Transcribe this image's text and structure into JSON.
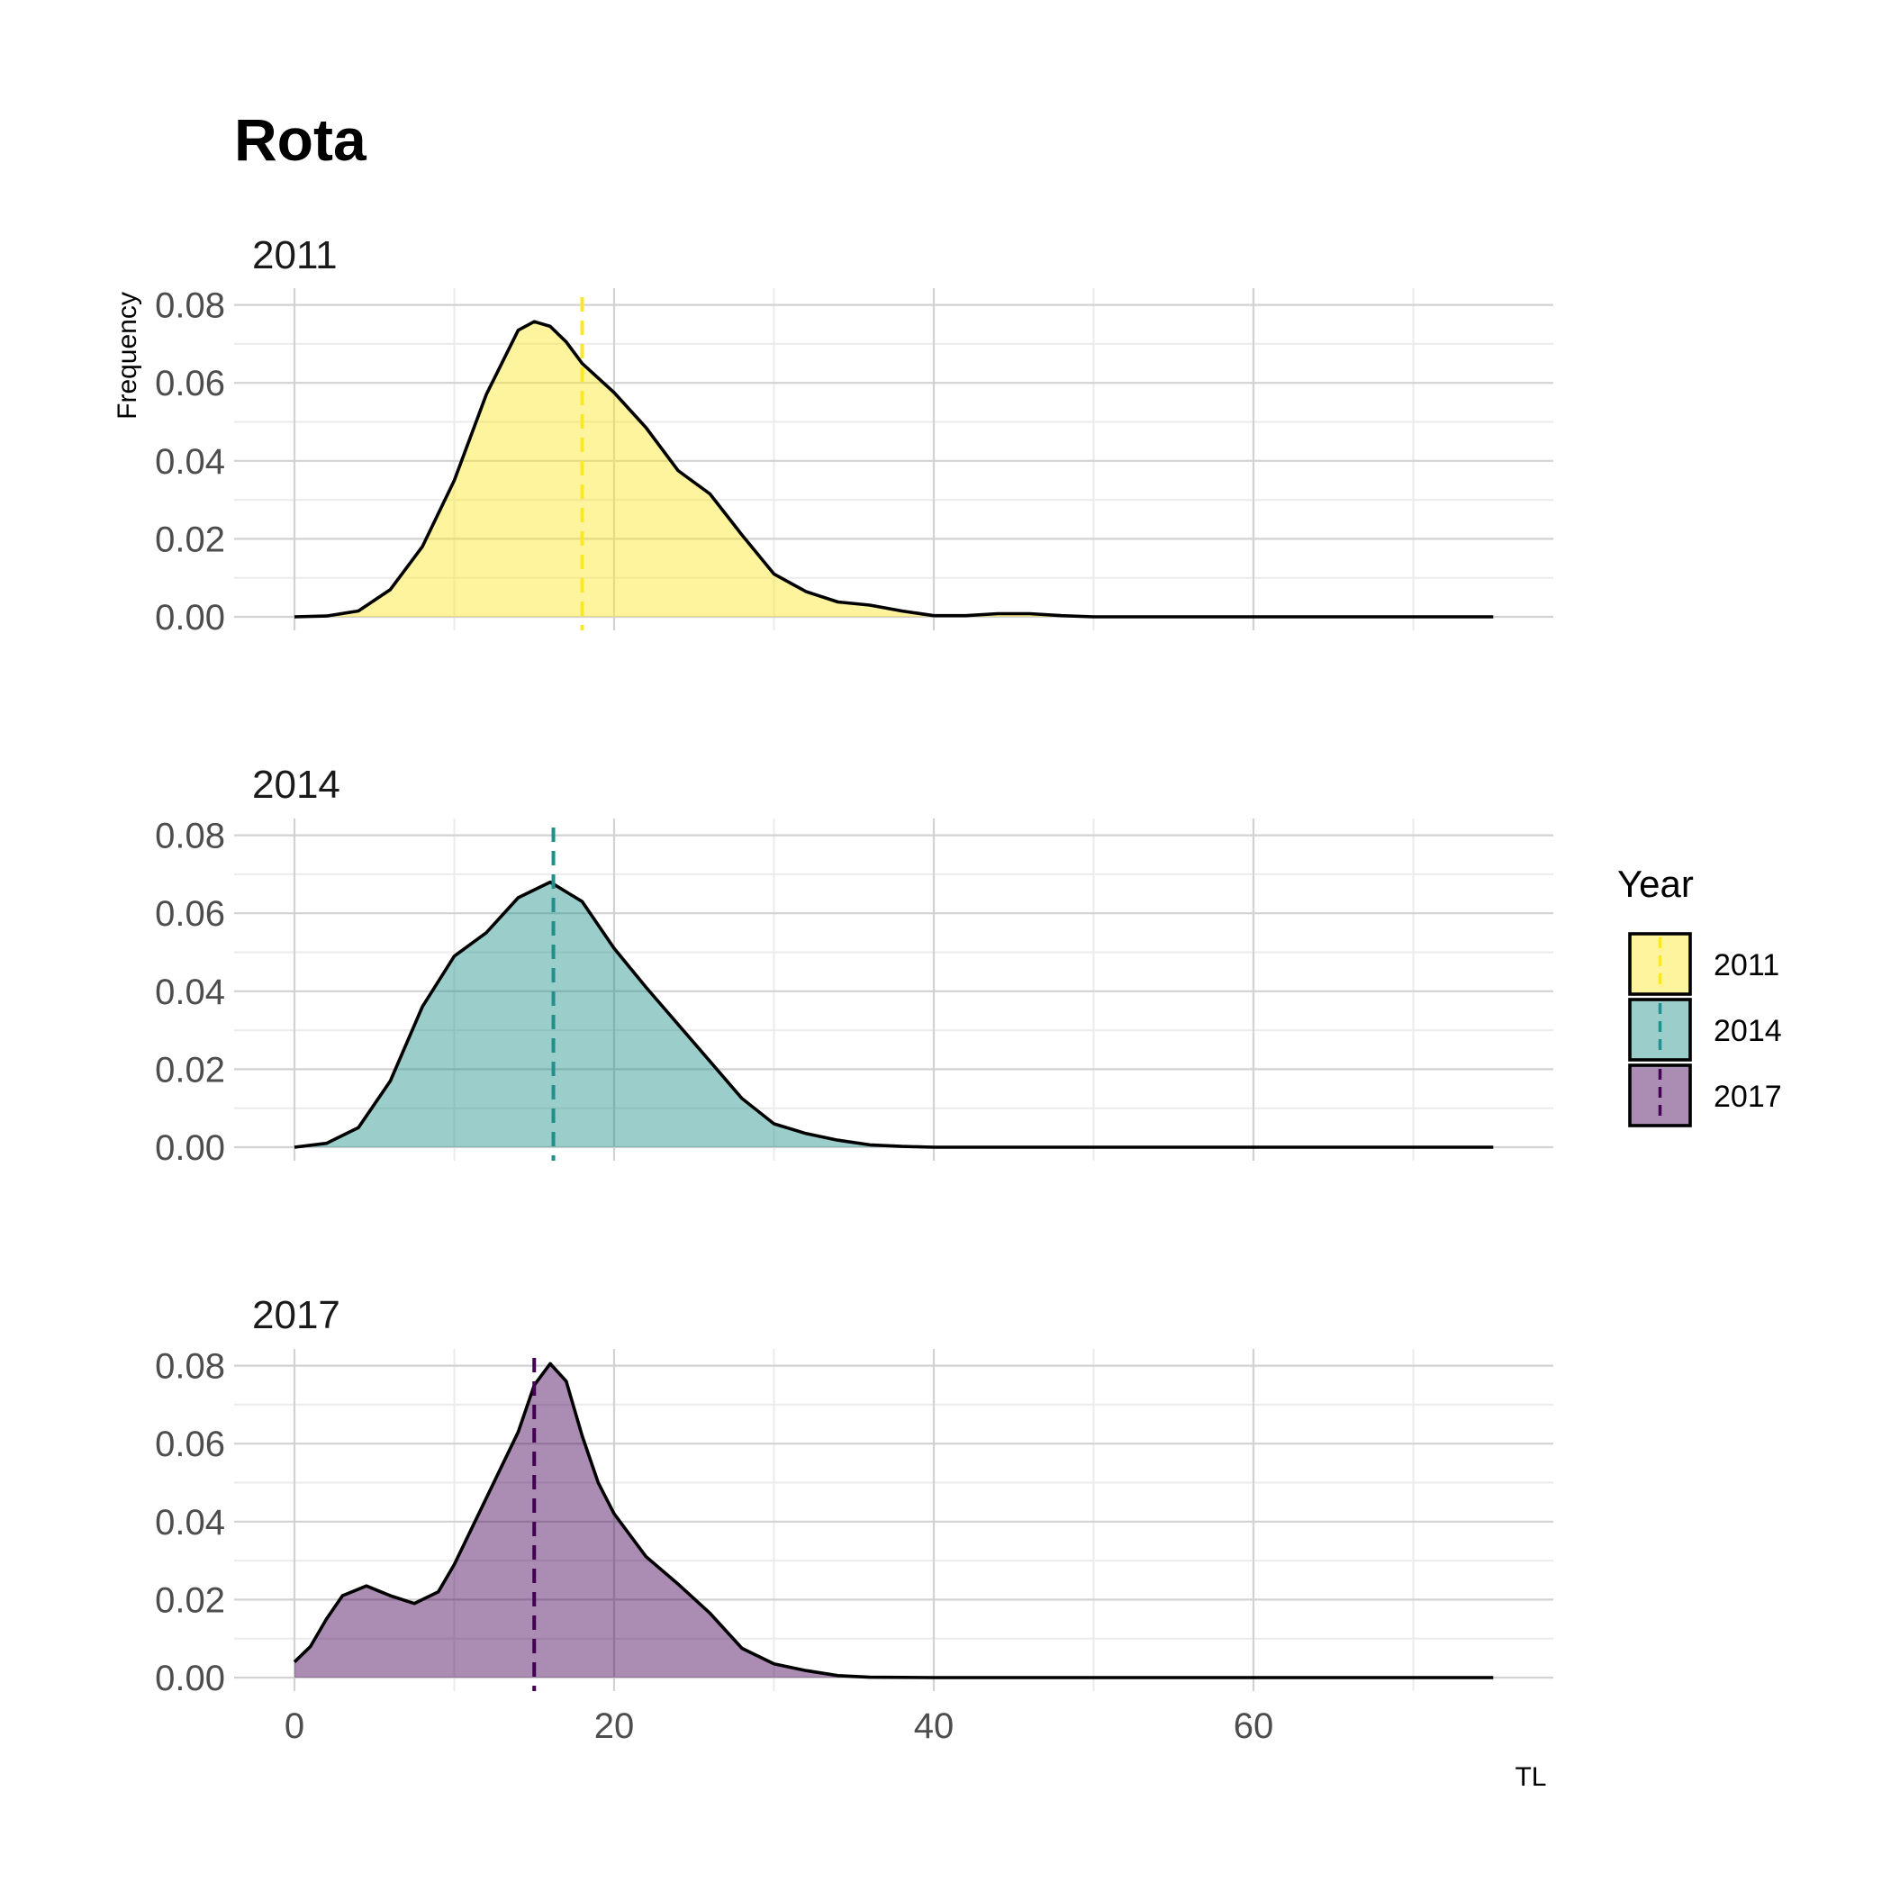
{
  "chart_data": {
    "type": "area",
    "title": "Rota",
    "xlabel": "TL",
    "ylabel": "Frequency",
    "xlim": [
      -4,
      79
    ],
    "ylim": [
      -0.0035,
      0.0825
    ],
    "x_major_ticks": [
      0,
      20,
      40,
      60
    ],
    "x_tick_labels": [
      "0",
      "20",
      "40",
      "60"
    ],
    "x_minor_ticks": [
      10,
      30,
      50,
      70
    ],
    "y_major_ticks": [
      0.0,
      0.02,
      0.04,
      0.06,
      0.08
    ],
    "y_tick_labels": [
      "0.00",
      "0.02",
      "0.04",
      "0.06",
      "0.08"
    ],
    "y_minor_ticks": [
      0.01,
      0.03,
      0.05,
      0.07
    ],
    "grid": true,
    "legend": {
      "title": "Year",
      "position": "right",
      "entries": [
        "2011",
        "2014",
        "2017"
      ]
    },
    "series": [
      {
        "name": "2011",
        "fill_color": "#FDE725",
        "line_color": "#FDE725",
        "mean_line_x": 18,
        "x": [
          0,
          2,
          4,
          6,
          8,
          10,
          12,
          14,
          15,
          16,
          17,
          18,
          20,
          22,
          24,
          26,
          28,
          30,
          32,
          34,
          36,
          38,
          40,
          42,
          44,
          46,
          48,
          50,
          55,
          60,
          65,
          70,
          75
        ],
        "y": [
          0.0,
          0.0002,
          0.0015,
          0.007,
          0.018,
          0.035,
          0.057,
          0.0735,
          0.0757,
          0.0745,
          0.0705,
          0.065,
          0.0575,
          0.0485,
          0.0375,
          0.0315,
          0.021,
          0.011,
          0.0065,
          0.0038,
          0.003,
          0.0015,
          0.0003,
          0.0003,
          0.0008,
          0.0008,
          0.0003,
          0.0,
          0.0,
          0.0,
          0.0,
          0.0,
          0.0
        ]
      },
      {
        "name": "2014",
        "fill_color": "#21908C",
        "line_color": "#21908C",
        "mean_line_x": 16.2,
        "x": [
          0,
          2,
          4,
          6,
          8,
          10,
          12,
          14,
          16,
          18,
          20,
          22,
          24,
          26,
          28,
          30,
          32,
          34,
          36,
          38,
          40,
          45,
          50,
          55,
          60,
          65,
          70,
          75
        ],
        "y": [
          0.0,
          0.001,
          0.005,
          0.017,
          0.036,
          0.049,
          0.055,
          0.064,
          0.068,
          0.063,
          0.051,
          0.041,
          0.0315,
          0.022,
          0.0125,
          0.006,
          0.0035,
          0.0018,
          0.0006,
          0.0002,
          0.0,
          0.0,
          0.0,
          0.0,
          0.0,
          0.0,
          0.0,
          0.0
        ]
      },
      {
        "name": "2017",
        "fill_color": "#440154",
        "line_color": "#440154",
        "mean_line_x": 15,
        "x": [
          0,
          1,
          2,
          3,
          4.5,
          6,
          7.5,
          9,
          10,
          12,
          14,
          15,
          16,
          17,
          18,
          19,
          20,
          22,
          24,
          26,
          28,
          30,
          32,
          34,
          36,
          40,
          45,
          50,
          55,
          60,
          65,
          70,
          75
        ],
        "y": [
          0.004,
          0.008,
          0.015,
          0.021,
          0.0235,
          0.021,
          0.019,
          0.022,
          0.029,
          0.046,
          0.063,
          0.075,
          0.0805,
          0.076,
          0.062,
          0.05,
          0.042,
          0.031,
          0.024,
          0.0165,
          0.0075,
          0.0035,
          0.0018,
          0.0005,
          0.0001,
          0.0,
          0.0,
          0.0,
          0.0,
          0.0,
          0.0,
          0.0,
          0.0
        ]
      }
    ]
  }
}
